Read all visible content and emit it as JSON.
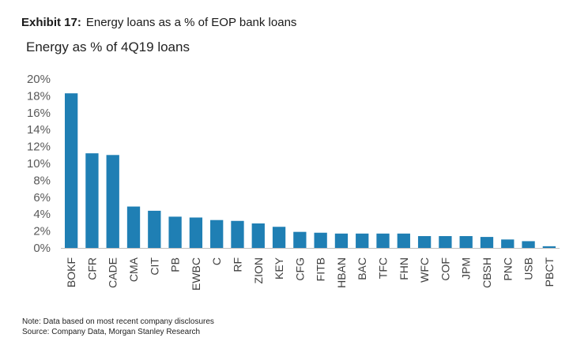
{
  "exhibit": {
    "label": "Exhibit 17:",
    "title": "Energy loans as a % of EOP bank loans"
  },
  "chart_data": {
    "type": "bar",
    "title": "Energy as % of 4Q19 loans",
    "xlabel": "",
    "ylabel": "",
    "ylim": [
      0,
      20
    ],
    "yticks": [
      "0%",
      "2%",
      "4%",
      "6%",
      "8%",
      "10%",
      "12%",
      "14%",
      "16%",
      "18%",
      "20%"
    ],
    "categories": [
      "BOKF",
      "CFR",
      "CADE",
      "CMA",
      "CIT",
      "PB",
      "EWBC",
      "C",
      "RF",
      "ZION",
      "KEY",
      "CFG",
      "FITB",
      "HBAN",
      "BAC",
      "TFC",
      "FHN",
      "WFC",
      "COF",
      "JPM",
      "CBSH",
      "PNC",
      "USB",
      "PBCT"
    ],
    "values": [
      18.3,
      11.2,
      11.0,
      4.9,
      4.4,
      3.7,
      3.6,
      3.3,
      3.2,
      2.9,
      2.5,
      1.9,
      1.8,
      1.7,
      1.7,
      1.7,
      1.7,
      1.4,
      1.4,
      1.4,
      1.3,
      1.0,
      0.8,
      0.2
    ],
    "bar_color": "#1f7fb4",
    "grid": false
  },
  "notes": {
    "note": "Note: Data based on most recent company disclosures",
    "source": "Source: Company Data, Morgan Stanley Research"
  }
}
